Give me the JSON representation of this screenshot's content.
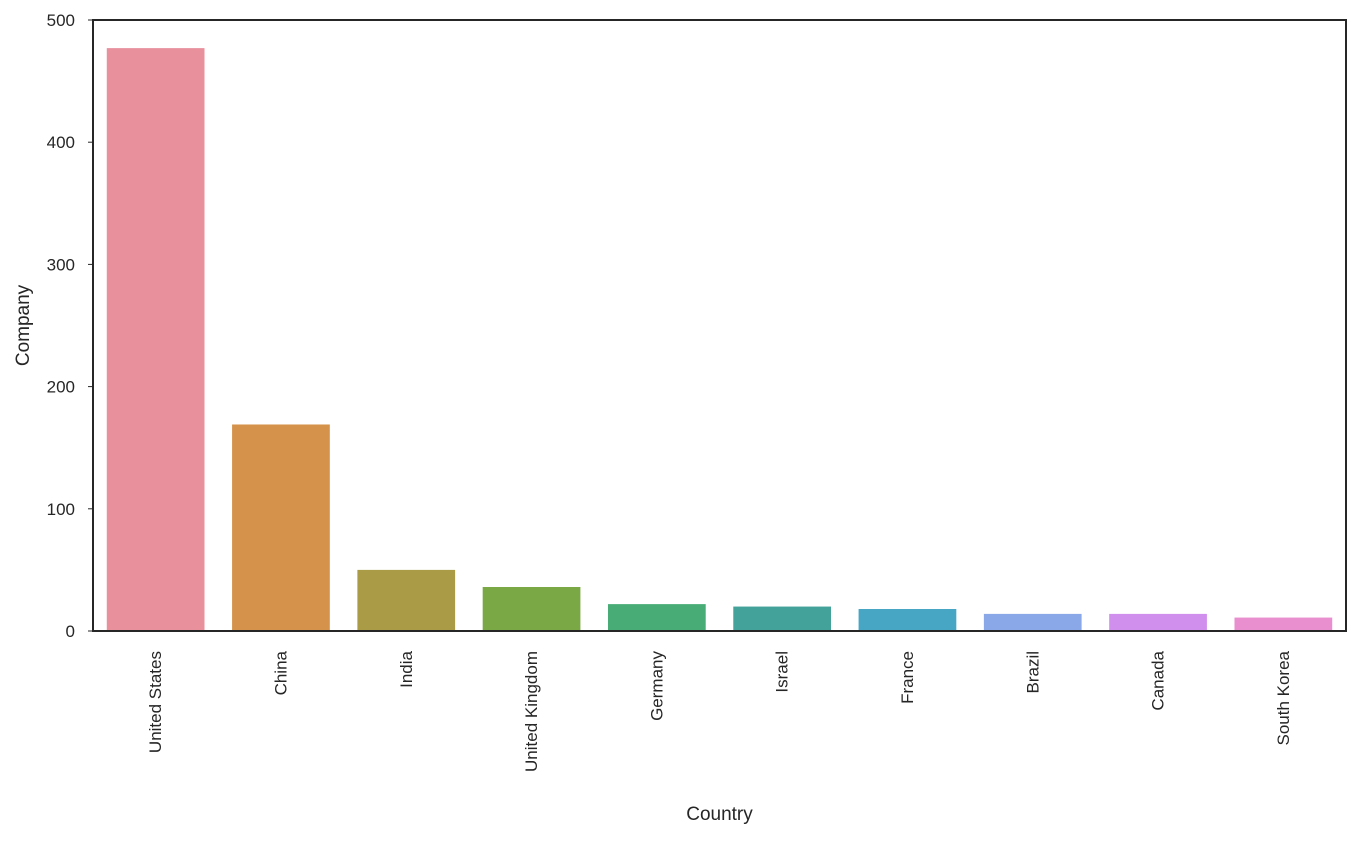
{
  "chart_data": {
    "type": "bar",
    "title": "",
    "xlabel": "Country",
    "ylabel": "Company",
    "categories": [
      "United States",
      "China",
      "India",
      "United Kingdom",
      "Germany",
      "Israel",
      "France",
      "Brazil",
      "Canada",
      "South Korea"
    ],
    "values": [
      477,
      169,
      50,
      36,
      22,
      20,
      18,
      14,
      14,
      11
    ],
    "colors": [
      "#e8919d",
      "#d5924a",
      "#aa9c47",
      "#79a844",
      "#47ac76",
      "#43a39b",
      "#47a6c3",
      "#8aa7e8",
      "#d08fec",
      "#e98fcf"
    ],
    "ylim": [
      0,
      500
    ],
    "yticks": [
      0,
      100,
      200,
      300,
      400,
      500
    ],
    "grid": false,
    "legend": false
  }
}
